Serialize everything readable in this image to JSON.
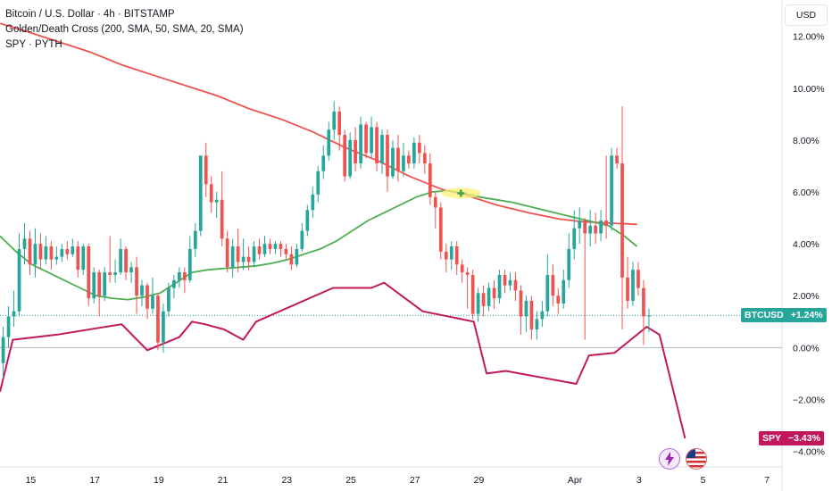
{
  "legend": {
    "title": "Bitcoin / U.S. Dollar · 4h · BITSTAMP",
    "indicator": "Golden/Death Cross (200, SMA, 50, SMA, 20, SMA)",
    "compare": "SPY · PYTH"
  },
  "currency_label": "USD",
  "price_tags": {
    "btc": {
      "symbol": "BTCUSD",
      "value": "+1.24%",
      "color": "#26a69a"
    },
    "spy": {
      "symbol": "SPY",
      "value": "−3.43%",
      "color": "#c2185b"
    }
  },
  "chart_data": {
    "type": "line",
    "y_unit": "%",
    "ylim": [
      -4.6,
      13.4
    ],
    "y_ticks": [
      12,
      10,
      8,
      6,
      4,
      2,
      0,
      -2,
      -4
    ],
    "y_tick_labels": [
      "12.00%",
      "10.00%",
      "8.00%",
      "6.00%",
      "4.00%",
      "2.00%",
      "0.00%",
      "−2.00%",
      "−4.00%"
    ],
    "x_ticks": [
      "15",
      "17",
      "19",
      "21",
      "23",
      "25",
      "27",
      "29",
      "Apr",
      "3",
      "5",
      "7"
    ],
    "x_tick_pos": [
      14.96,
      16.96,
      18.96,
      20.96,
      22.96,
      24.96,
      26.96,
      28.96,
      31.96,
      33.96,
      35.96,
      37.96
    ],
    "xlim": [
      14.0,
      38.4
    ],
    "candles_t0": 14.1,
    "candles_step": 0.1667,
    "candle_colors": {
      "up": "#26a69a",
      "down": "#ef5350"
    },
    "candles": [
      [
        -0.6,
        0.4,
        -1.2,
        0.8
      ],
      [
        0.4,
        1.2,
        0.0,
        1.6
      ],
      [
        1.2,
        1.4,
        0.8,
        2.2
      ],
      [
        1.4,
        3.8,
        1.2,
        4.4
      ],
      [
        3.8,
        4.2,
        3.2,
        4.8
      ],
      [
        4.2,
        3.2,
        2.8,
        4.5
      ],
      [
        3.2,
        4.0,
        2.7,
        4.6
      ],
      [
        4.0,
        3.4,
        3.0,
        4.4
      ],
      [
        3.4,
        3.9,
        3.2,
        4.3
      ],
      [
        3.9,
        3.4,
        3.0,
        4.1
      ],
      [
        3.4,
        3.5,
        3.2,
        3.9
      ],
      [
        3.5,
        3.8,
        3.3,
        4.0
      ],
      [
        3.8,
        3.6,
        3.4,
        4.1
      ],
      [
        3.6,
        3.9,
        3.5,
        4.2
      ],
      [
        3.9,
        3.0,
        2.7,
        4.1
      ],
      [
        3.0,
        3.9,
        2.8,
        4.0
      ],
      [
        3.9,
        1.9,
        1.6,
        4.0
      ],
      [
        1.9,
        2.9,
        1.7,
        3.1
      ],
      [
        2.9,
        2.0,
        1.2,
        3.0
      ],
      [
        2.0,
        2.9,
        1.8,
        3.1
      ],
      [
        2.9,
        2.8,
        2.5,
        4.3
      ],
      [
        2.8,
        2.9,
        2.5,
        3.4
      ],
      [
        2.9,
        3.8,
        2.8,
        4.2
      ],
      [
        3.8,
        2.9,
        2.6,
        3.9
      ],
      [
        2.9,
        3.1,
        2.5,
        3.3
      ],
      [
        3.1,
        2.0,
        1.3,
        3.5
      ],
      [
        2.0,
        2.4,
        1.6,
        2.6
      ],
      [
        2.4,
        1.5,
        1.1,
        2.5
      ],
      [
        1.5,
        2.0,
        1.3,
        2.7
      ],
      [
        2.0,
        0.2,
        -0.1,
        2.1
      ],
      [
        0.2,
        1.4,
        -0.2,
        1.7
      ],
      [
        1.4,
        2.3,
        1.2,
        2.5
      ],
      [
        2.3,
        2.6,
        1.9,
        2.8
      ],
      [
        2.6,
        2.9,
        2.3,
        3.1
      ],
      [
        2.9,
        2.6,
        2.1,
        3.1
      ],
      [
        2.6,
        3.8,
        2.5,
        4.3
      ],
      [
        3.8,
        4.5,
        3.5,
        4.8
      ],
      [
        4.5,
        7.4,
        4.3,
        7.4
      ],
      [
        7.4,
        6.3,
        5.8,
        7.9
      ],
      [
        6.3,
        5.6,
        5.2,
        6.6
      ],
      [
        5.6,
        5.7,
        5.0,
        6.0
      ],
      [
        5.7,
        4.2,
        3.9,
        6.8
      ],
      [
        4.2,
        3.1,
        2.9,
        4.5
      ],
      [
        3.1,
        3.9,
        2.7,
        4.2
      ],
      [
        3.9,
        3.3,
        2.9,
        4.6
      ],
      [
        3.3,
        3.5,
        3.0,
        4.2
      ],
      [
        3.5,
        3.3,
        3.0,
        3.9
      ],
      [
        3.3,
        3.9,
        3.1,
        4.1
      ],
      [
        3.9,
        3.6,
        3.4,
        4.2
      ],
      [
        3.6,
        4.0,
        3.5,
        4.3
      ],
      [
        4.0,
        3.8,
        3.6,
        4.2
      ],
      [
        3.8,
        4.0,
        3.6,
        4.1
      ],
      [
        4.0,
        3.8,
        3.5,
        4.1
      ],
      [
        3.8,
        3.6,
        3.4,
        4.0
      ],
      [
        3.6,
        3.2,
        3.0,
        3.9
      ],
      [
        3.2,
        3.8,
        3.1,
        4.0
      ],
      [
        3.8,
        4.5,
        3.7,
        4.8
      ],
      [
        4.5,
        5.3,
        4.3,
        5.5
      ],
      [
        5.3,
        5.9,
        5.0,
        6.2
      ],
      [
        5.9,
        6.8,
        5.6,
        7.0
      ],
      [
        6.8,
        7.4,
        6.5,
        7.8
      ],
      [
        7.4,
        8.4,
        7.2,
        8.7
      ],
      [
        8.4,
        9.1,
        8.0,
        9.5
      ],
      [
        9.1,
        8.2,
        7.6,
        9.3
      ],
      [
        8.2,
        6.6,
        6.4,
        8.4
      ],
      [
        6.6,
        8.0,
        6.5,
        8.3
      ],
      [
        8.0,
        7.1,
        6.8,
        8.5
      ],
      [
        7.1,
        8.6,
        6.9,
        8.9
      ],
      [
        8.6,
        7.5,
        7.3,
        8.7
      ],
      [
        7.5,
        8.5,
        7.3,
        8.9
      ],
      [
        8.5,
        7.1,
        6.8,
        8.7
      ],
      [
        7.1,
        8.2,
        6.7,
        8.4
      ],
      [
        8.2,
        6.6,
        6.0,
        8.4
      ],
      [
        6.6,
        7.7,
        6.5,
        8.0
      ],
      [
        7.7,
        6.8,
        6.4,
        8.2
      ],
      [
        6.8,
        7.4,
        6.6,
        7.9
      ],
      [
        7.4,
        7.1,
        6.9,
        7.6
      ],
      [
        7.1,
        7.9,
        6.9,
        8.1
      ],
      [
        7.9,
        7.5,
        7.1,
        8.2
      ],
      [
        7.5,
        7.1,
        6.7,
        7.8
      ],
      [
        7.1,
        5.8,
        5.5,
        7.5
      ],
      [
        5.8,
        5.4,
        4.6,
        6.0
      ],
      [
        5.4,
        3.7,
        3.4,
        5.6
      ],
      [
        3.7,
        3.4,
        2.9,
        4.0
      ],
      [
        3.4,
        3.9,
        3.0,
        4.1
      ],
      [
        3.9,
        3.2,
        2.8,
        4.1
      ],
      [
        3.2,
        2.9,
        2.5,
        3.4
      ],
      [
        2.9,
        2.8,
        1.5,
        3.1
      ],
      [
        2.8,
        1.3,
        1.1,
        3.0
      ],
      [
        1.3,
        2.1,
        1.0,
        2.3
      ],
      [
        2.1,
        1.6,
        1.2,
        2.4
      ],
      [
        1.6,
        2.3,
        1.4,
        2.5
      ],
      [
        2.3,
        1.9,
        1.5,
        2.6
      ],
      [
        1.9,
        2.8,
        1.7,
        3.0
      ],
      [
        2.8,
        2.4,
        2.1,
        3.0
      ],
      [
        2.4,
        2.6,
        2.2,
        2.9
      ],
      [
        2.6,
        2.2,
        1.8,
        2.9
      ],
      [
        2.2,
        1.2,
        0.5,
        2.4
      ],
      [
        1.2,
        1.8,
        0.6,
        2.0
      ],
      [
        1.8,
        0.7,
        0.3,
        2.0
      ],
      [
        0.7,
        1.1,
        0.3,
        1.4
      ],
      [
        1.1,
        1.4,
        0.8,
        1.8
      ],
      [
        1.4,
        2.8,
        1.2,
        3.6
      ],
      [
        2.8,
        2.0,
        1.6,
        3.2
      ],
      [
        2.0,
        1.7,
        1.3,
        2.3
      ],
      [
        1.7,
        2.6,
        1.5,
        3.0
      ],
      [
        2.6,
        3.8,
        2.3,
        4.4
      ],
      [
        3.8,
        4.6,
        3.4,
        5.3
      ],
      [
        4.6,
        4.9,
        4.0,
        5.4
      ],
      [
        4.9,
        4.4,
        0.3,
        5.0
      ],
      [
        4.4,
        4.7,
        3.9,
        5.3
      ],
      [
        4.7,
        4.4,
        4.0,
        5.2
      ],
      [
        4.4,
        4.9,
        4.1,
        5.3
      ],
      [
        4.9,
        4.7,
        4.2,
        7.4
      ],
      [
        4.7,
        7.4,
        4.5,
        7.7
      ],
      [
        7.4,
        7.1,
        6.9,
        7.7
      ],
      [
        7.1,
        2.7,
        0.7,
        9.3
      ],
      [
        2.7,
        1.8,
        1.5,
        3.5
      ],
      [
        1.8,
        3.0,
        1.6,
        3.3
      ],
      [
        3.0,
        2.3,
        2.0,
        3.3
      ],
      [
        2.3,
        1.2,
        0.1,
        2.6
      ],
      [
        1.2,
        1.24,
        0.6,
        1.5
      ]
    ],
    "series": [
      {
        "name": "",
        "color": "#ef5350",
        "points": [
          [
            14.0,
            12.5
          ],
          [
            14.8,
            12.2
          ],
          [
            15.8,
            11.8
          ],
          [
            16.8,
            11.4
          ],
          [
            17.8,
            10.9
          ],
          [
            18.8,
            10.5
          ],
          [
            19.8,
            10.1
          ],
          [
            20.8,
            9.7
          ],
          [
            21.8,
            9.2
          ],
          [
            22.8,
            8.8
          ],
          [
            23.8,
            8.3
          ],
          [
            24.8,
            7.7
          ],
          [
            25.8,
            7.2
          ],
          [
            26.8,
            6.6
          ],
          [
            27.8,
            6.1
          ],
          [
            28.5,
            5.9
          ],
          [
            29.5,
            5.5
          ],
          [
            30.5,
            5.2
          ],
          [
            31.5,
            4.95
          ],
          [
            32.2,
            4.85
          ],
          [
            33.0,
            4.8
          ],
          [
            33.9,
            4.75
          ]
        ]
      },
      {
        "name": "",
        "color": "#4caf50",
        "points": [
          [
            14.0,
            4.3
          ],
          [
            14.5,
            3.7
          ],
          [
            15.0,
            3.2
          ],
          [
            15.5,
            2.9
          ],
          [
            16.0,
            2.6
          ],
          [
            16.5,
            2.3
          ],
          [
            17.0,
            2.0
          ],
          [
            17.5,
            1.9
          ],
          [
            18.0,
            1.85
          ],
          [
            18.5,
            1.95
          ],
          [
            19.0,
            2.1
          ],
          [
            19.5,
            2.5
          ],
          [
            20.0,
            2.9
          ],
          [
            20.5,
            3.0
          ],
          [
            21.0,
            3.05
          ],
          [
            21.5,
            3.1
          ],
          [
            22.0,
            3.15
          ],
          [
            22.5,
            3.25
          ],
          [
            23.0,
            3.4
          ],
          [
            23.5,
            3.6
          ],
          [
            24.0,
            3.8
          ],
          [
            24.5,
            4.1
          ],
          [
            25.0,
            4.5
          ],
          [
            25.5,
            4.9
          ],
          [
            26.0,
            5.2
          ],
          [
            26.5,
            5.5
          ],
          [
            27.0,
            5.8
          ],
          [
            27.5,
            6.0
          ],
          [
            28.0,
            6.05
          ],
          [
            28.5,
            5.95
          ],
          [
            29.0,
            5.8
          ],
          [
            29.5,
            5.7
          ],
          [
            30.0,
            5.6
          ],
          [
            30.5,
            5.45
          ],
          [
            31.0,
            5.3
          ],
          [
            31.5,
            5.15
          ],
          [
            32.0,
            5.0
          ],
          [
            32.5,
            4.85
          ],
          [
            33.0,
            4.7
          ],
          [
            33.5,
            4.3
          ],
          [
            33.9,
            3.9
          ]
        ]
      },
      {
        "name": "SPY",
        "color": "#c2185b",
        "points": [
          [
            14.0,
            -1.7
          ],
          [
            14.4,
            0.3
          ],
          [
            15.8,
            0.5
          ],
          [
            17.8,
            0.9
          ],
          [
            18.6,
            -0.1
          ],
          [
            19.0,
            0.1
          ],
          [
            19.6,
            0.4
          ],
          [
            20.0,
            1.0
          ],
          [
            20.4,
            0.9
          ],
          [
            21.0,
            0.7
          ],
          [
            21.6,
            0.3
          ],
          [
            22.0,
            1.0
          ],
          [
            24.4,
            2.3
          ],
          [
            25.6,
            2.3
          ],
          [
            26.0,
            2.5
          ],
          [
            27.2,
            1.4
          ],
          [
            28.8,
            1.0
          ],
          [
            29.2,
            -1.0
          ],
          [
            29.8,
            -0.9
          ],
          [
            32.0,
            -1.4
          ],
          [
            32.4,
            -0.3
          ],
          [
            33.2,
            -0.2
          ],
          [
            33.6,
            0.2
          ],
          [
            34.2,
            0.8
          ],
          [
            34.6,
            0.5
          ],
          [
            35.4,
            -3.5
          ]
        ]
      }
    ],
    "cross_marker": {
      "x": 28.4,
      "y": 5.95
    }
  }
}
